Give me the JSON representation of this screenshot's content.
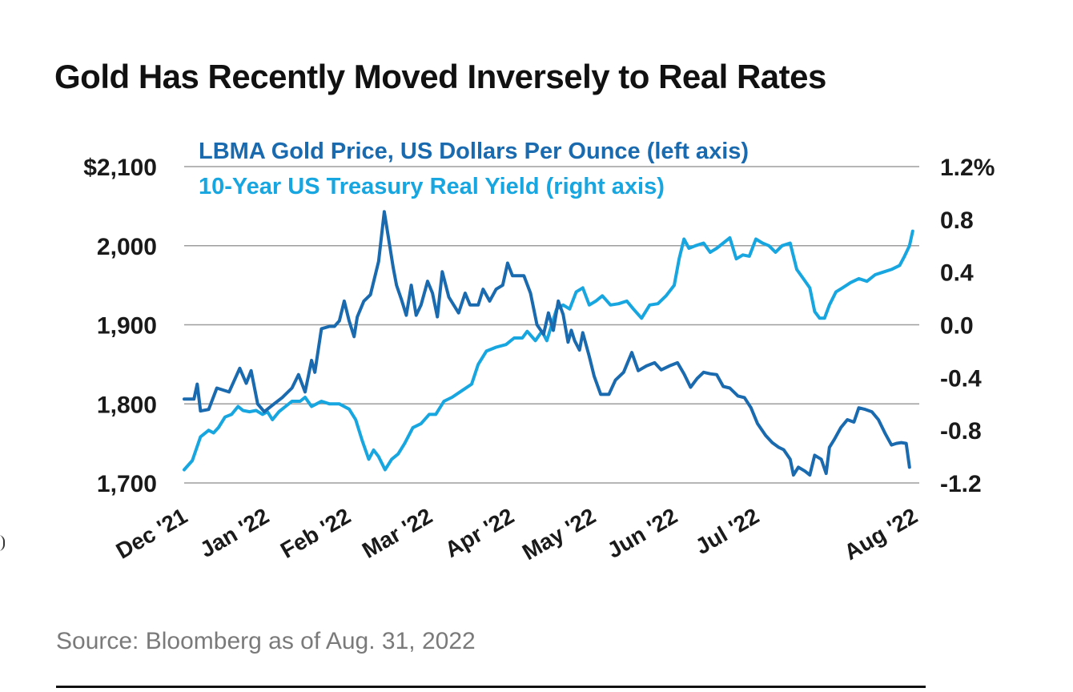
{
  "title": "Gold Has Recently Moved Inversely to Real Rates",
  "source": "Source: Bloomberg as of Aug. 31, 2022",
  "colors": {
    "gold": "#1a6aaf",
    "real_yield": "#17a6e0",
    "grid": "#9e9e9e",
    "text": "#1a1a1a"
  },
  "chart_data": {
    "type": "line",
    "grid": true,
    "legend_position": "top-left",
    "x_labels": [
      "Dec '21",
      "Jan '22",
      "Feb '22",
      "Mar '22",
      "Apr '22",
      "May '22",
      "Jun '22",
      "Jul '22",
      "Aug '22"
    ],
    "x_range": [
      0,
      9
    ],
    "left_axis": {
      "ticks": [
        "$2,100",
        "2,000",
        "1,900",
        "1,800",
        "1,700"
      ],
      "tick_values": [
        2100,
        2000,
        1900,
        1800,
        1700
      ],
      "ylim": [
        1700,
        2100
      ]
    },
    "right_axis": {
      "ticks": [
        "1.2%",
        "0.8",
        "0.4",
        "0.0",
        "-0.4",
        "-0.8",
        "-1.2"
      ],
      "tick_values": [
        1.2,
        0.8,
        0.4,
        0.0,
        -0.4,
        -0.8,
        -1.2
      ],
      "ylim": [
        -1.2,
        1.2
      ]
    },
    "series": [
      {
        "name": "LBMA Gold Price, US Dollars Per Ounce (left axis)",
        "axis": "left",
        "points": [
          [
            0,
            1806
          ],
          [
            0.12,
            1806
          ],
          [
            0.16,
            1825
          ],
          [
            0.2,
            1791
          ],
          [
            0.3,
            1793
          ],
          [
            0.4,
            1820
          ],
          [
            0.55,
            1815
          ],
          [
            0.68,
            1845
          ],
          [
            0.76,
            1826
          ],
          [
            0.82,
            1842
          ],
          [
            0.9,
            1800
          ],
          [
            0.98,
            1790
          ],
          [
            1.1,
            1800
          ],
          [
            1.2,
            1808
          ],
          [
            1.32,
            1820
          ],
          [
            1.4,
            1837
          ],
          [
            1.48,
            1815
          ],
          [
            1.56,
            1855
          ],
          [
            1.6,
            1840
          ],
          [
            1.68,
            1895
          ],
          [
            1.78,
            1898
          ],
          [
            1.84,
            1898
          ],
          [
            1.9,
            1905
          ],
          [
            1.96,
            1930
          ],
          [
            2.02,
            1905
          ],
          [
            2.08,
            1885
          ],
          [
            2.12,
            1910
          ],
          [
            2.2,
            1930
          ],
          [
            2.28,
            1938
          ],
          [
            2.38,
            1980
          ],
          [
            2.45,
            2043
          ],
          [
            2.52,
            1998
          ],
          [
            2.56,
            1972
          ],
          [
            2.6,
            1950
          ],
          [
            2.66,
            1932
          ],
          [
            2.72,
            1912
          ],
          [
            2.78,
            1950
          ],
          [
            2.84,
            1912
          ],
          [
            2.9,
            1925
          ],
          [
            2.98,
            1955
          ],
          [
            3.04,
            1940
          ],
          [
            3.1,
            1910
          ],
          [
            3.16,
            1967
          ],
          [
            3.24,
            1935
          ],
          [
            3.3,
            1925
          ],
          [
            3.36,
            1915
          ],
          [
            3.44,
            1940
          ],
          [
            3.5,
            1925
          ],
          [
            3.6,
            1925
          ],
          [
            3.66,
            1945
          ],
          [
            3.74,
            1930
          ],
          [
            3.82,
            1945
          ],
          [
            3.9,
            1950
          ],
          [
            3.96,
            1978
          ],
          [
            4.02,
            1962
          ],
          [
            4.16,
            1962
          ],
          [
            4.24,
            1940
          ],
          [
            4.32,
            1900
          ],
          [
            4.4,
            1888
          ],
          [
            4.46,
            1915
          ],
          [
            4.52,
            1893
          ],
          [
            4.58,
            1930
          ],
          [
            4.64,
            1913
          ],
          [
            4.7,
            1878
          ],
          [
            4.74,
            1893
          ],
          [
            4.78,
            1880
          ],
          [
            4.84,
            1868
          ],
          [
            4.88,
            1890
          ],
          [
            4.96,
            1860
          ],
          [
            5.02,
            1835
          ],
          [
            5.1,
            1812
          ],
          [
            5.2,
            1812
          ],
          [
            5.28,
            1830
          ],
          [
            5.38,
            1840
          ],
          [
            5.48,
            1865
          ],
          [
            5.56,
            1842
          ],
          [
            5.66,
            1848
          ],
          [
            5.76,
            1852
          ],
          [
            5.84,
            1843
          ],
          [
            5.94,
            1848
          ],
          [
            6.04,
            1852
          ],
          [
            6.12,
            1838
          ],
          [
            6.2,
            1821
          ],
          [
            6.28,
            1832
          ],
          [
            6.36,
            1840
          ],
          [
            6.44,
            1838
          ],
          [
            6.52,
            1837
          ],
          [
            6.6,
            1822
          ],
          [
            6.68,
            1820
          ],
          [
            6.78,
            1810
          ],
          [
            6.86,
            1808
          ],
          [
            6.94,
            1795
          ],
          [
            7.02,
            1775
          ],
          [
            7.12,
            1760
          ],
          [
            7.2,
            1751
          ],
          [
            7.28,
            1745
          ],
          [
            7.34,
            1742
          ],
          [
            7.42,
            1730
          ],
          [
            7.46,
            1710
          ],
          [
            7.52,
            1720
          ],
          [
            7.6,
            1715
          ],
          [
            7.66,
            1710
          ],
          [
            7.72,
            1735
          ],
          [
            7.8,
            1730
          ],
          [
            7.86,
            1712
          ],
          [
            7.9,
            1745
          ],
          [
            7.96,
            1755
          ],
          [
            8.04,
            1770
          ],
          [
            8.12,
            1780
          ],
          [
            8.2,
            1777
          ],
          [
            8.26,
            1795
          ],
          [
            8.34,
            1793
          ],
          [
            8.42,
            1790
          ],
          [
            8.5,
            1780
          ],
          [
            8.58,
            1763
          ],
          [
            8.66,
            1748
          ],
          [
            8.72,
            1750
          ],
          [
            8.78,
            1751
          ],
          [
            8.84,
            1750
          ],
          [
            8.88,
            1720
          ]
        ]
      },
      {
        "name": "10-Year US Treasury Real Yield (right axis)",
        "axis": "right",
        "points": [
          [
            0,
            -1.1
          ],
          [
            0.1,
            -1.03
          ],
          [
            0.2,
            -0.85
          ],
          [
            0.3,
            -0.8
          ],
          [
            0.36,
            -0.82
          ],
          [
            0.42,
            -0.78
          ],
          [
            0.5,
            -0.7
          ],
          [
            0.58,
            -0.68
          ],
          [
            0.66,
            -0.62
          ],
          [
            0.72,
            -0.65
          ],
          [
            0.8,
            -0.66
          ],
          [
            0.88,
            -0.65
          ],
          [
            0.96,
            -0.68
          ],
          [
            1.02,
            -0.66
          ],
          [
            1.08,
            -0.72
          ],
          [
            1.16,
            -0.66
          ],
          [
            1.24,
            -0.62
          ],
          [
            1.32,
            -0.58
          ],
          [
            1.42,
            -0.58
          ],
          [
            1.48,
            -0.55
          ],
          [
            1.56,
            -0.62
          ],
          [
            1.62,
            -0.6
          ],
          [
            1.68,
            -0.58
          ],
          [
            1.78,
            -0.6
          ],
          [
            1.9,
            -0.6
          ],
          [
            2.02,
            -0.64
          ],
          [
            2.1,
            -0.72
          ],
          [
            2.18,
            -0.88
          ],
          [
            2.26,
            -1.02
          ],
          [
            2.32,
            -0.95
          ],
          [
            2.38,
            -1.0
          ],
          [
            2.46,
            -1.1
          ],
          [
            2.54,
            -1.02
          ],
          [
            2.62,
            -0.98
          ],
          [
            2.7,
            -0.9
          ],
          [
            2.8,
            -0.78
          ],
          [
            2.9,
            -0.75
          ],
          [
            3.0,
            -0.68
          ],
          [
            3.08,
            -0.68
          ],
          [
            3.18,
            -0.58
          ],
          [
            3.28,
            -0.55
          ],
          [
            3.4,
            -0.5
          ],
          [
            3.52,
            -0.45
          ],
          [
            3.6,
            -0.3
          ],
          [
            3.7,
            -0.2
          ],
          [
            3.82,
            -0.17
          ],
          [
            3.94,
            -0.15
          ],
          [
            4.04,
            -0.1
          ],
          [
            4.14,
            -0.1
          ],
          [
            4.2,
            -0.05
          ],
          [
            4.3,
            -0.12
          ],
          [
            4.38,
            -0.05
          ],
          [
            4.44,
            -0.12
          ],
          [
            4.5,
            0.0
          ],
          [
            4.56,
            0.12
          ],
          [
            4.64,
            0.15
          ],
          [
            4.72,
            0.12
          ],
          [
            4.8,
            0.25
          ],
          [
            4.88,
            0.28
          ],
          [
            4.96,
            0.15
          ],
          [
            5.04,
            0.18
          ],
          [
            5.12,
            0.22
          ],
          [
            5.22,
            0.15
          ],
          [
            5.32,
            0.16
          ],
          [
            5.42,
            0.18
          ],
          [
            5.5,
            0.12
          ],
          [
            5.6,
            0.05
          ],
          [
            5.7,
            0.15
          ],
          [
            5.8,
            0.16
          ],
          [
            5.9,
            0.22
          ],
          [
            6.0,
            0.3
          ],
          [
            6.06,
            0.5
          ],
          [
            6.12,
            0.65
          ],
          [
            6.18,
            0.58
          ],
          [
            6.26,
            0.6
          ],
          [
            6.36,
            0.62
          ],
          [
            6.44,
            0.55
          ],
          [
            6.52,
            0.58
          ],
          [
            6.6,
            0.62
          ],
          [
            6.68,
            0.66
          ],
          [
            6.76,
            0.5
          ],
          [
            6.84,
            0.53
          ],
          [
            6.92,
            0.52
          ],
          [
            7.0,
            0.65
          ],
          [
            7.08,
            0.62
          ],
          [
            7.16,
            0.6
          ],
          [
            7.24,
            0.55
          ],
          [
            7.32,
            0.6
          ],
          [
            7.42,
            0.62
          ],
          [
            7.5,
            0.42
          ],
          [
            7.58,
            0.35
          ],
          [
            7.66,
            0.28
          ],
          [
            7.72,
            0.1
          ],
          [
            7.78,
            0.05
          ],
          [
            7.84,
            0.05
          ],
          [
            7.9,
            0.15
          ],
          [
            7.98,
            0.25
          ],
          [
            8.06,
            0.28
          ],
          [
            8.16,
            0.32
          ],
          [
            8.26,
            0.35
          ],
          [
            8.36,
            0.33
          ],
          [
            8.46,
            0.38
          ],
          [
            8.56,
            0.4
          ],
          [
            8.66,
            0.42
          ],
          [
            8.76,
            0.45
          ],
          [
            8.82,
            0.52
          ],
          [
            8.88,
            0.6
          ],
          [
            8.92,
            0.71
          ]
        ]
      }
    ]
  }
}
